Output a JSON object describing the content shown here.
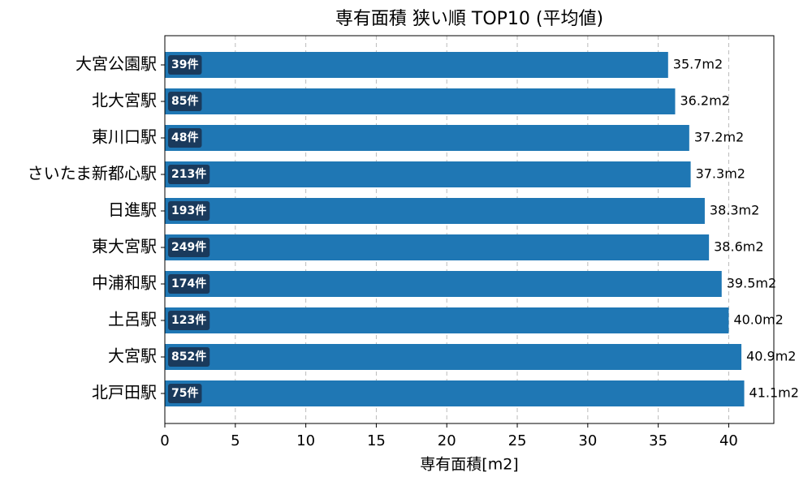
{
  "chart_data": {
    "type": "barh",
    "title": "専有面積 狭い順 TOP10 (平均値)",
    "xlabel": "専有面積[m2]",
    "categories": [
      "大宮公園駅",
      "北大宮駅",
      "東川口駅",
      "さいたま新都心駅",
      "日進駅",
      "東大宮駅",
      "中浦和駅",
      "土呂駅",
      "大宮駅",
      "北戸田駅"
    ],
    "values": [
      35.7,
      36.2,
      37.2,
      37.3,
      38.3,
      38.6,
      39.5,
      40.0,
      40.9,
      41.1
    ],
    "value_labels": [
      "35.7m2",
      "36.2m2",
      "37.2m2",
      "37.3m2",
      "38.3m2",
      "38.6m2",
      "39.5m2",
      "40.0m2",
      "40.9m2",
      "41.1m2"
    ],
    "count_labels": [
      "39件",
      "85件",
      "48件",
      "213件",
      "193件",
      "249件",
      "174件",
      "123件",
      "852件",
      "75件"
    ],
    "color": "#1f77b4",
    "count_label_color": "#1a3a5c",
    "xlim": [
      0,
      43.2
    ],
    "xticks": [
      0,
      5,
      10,
      15,
      20,
      25,
      30,
      35,
      40
    ],
    "grid": true
  }
}
